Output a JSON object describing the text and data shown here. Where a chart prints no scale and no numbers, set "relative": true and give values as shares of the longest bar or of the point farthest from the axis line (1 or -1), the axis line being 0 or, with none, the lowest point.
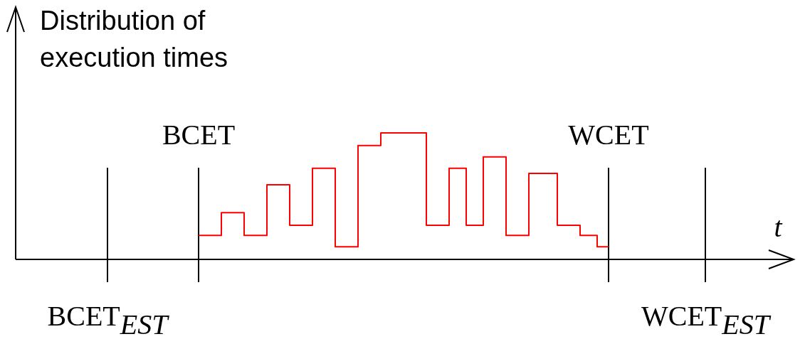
{
  "chart_data": {
    "type": "step",
    "ylabel": "Distribution of execution times",
    "xlabel": "t",
    "relative": true,
    "categories": [
      null,
      null,
      null,
      null,
      null,
      null,
      null,
      null,
      null,
      null,
      null,
      null,
      null,
      null,
      null,
      null,
      null,
      null,
      null,
      null,
      null,
      null,
      null,
      null,
      null,
      null,
      null,
      null,
      null,
      null,
      null,
      null,
      null,
      null,
      null,
      null,
      null,
      null,
      null,
      null,
      null,
      null,
      null,
      null,
      null,
      null,
      null,
      null,
      null,
      null,
      null,
      null,
      null,
      null,
      null,
      null,
      null,
      null,
      null,
      null,
      null,
      null,
      null,
      null,
      null,
      null,
      null,
      null,
      null,
      null,
      null,
      null,
      null,
      null,
      null,
      null,
      null,
      null,
      null,
      null,
      null,
      null,
      null,
      null,
      null,
      null,
      null,
      null,
      null,
      null,
      null,
      null,
      null,
      null,
      null,
      null,
      null,
      null,
      null,
      null,
      null,
      null,
      null,
      null,
      null,
      null
    ],
    "series": [
      {
        "color": "#ff0000",
        "values": [
          null,
          null,
          null,
          null,
          null,
          null,
          null,
          null,
          null,
          null,
          null,
          null,
          null,
          null,
          null,
          null,
          0.19,
          0.19,
          0.19,
          0.19,
          0.37,
          0.37,
          0.37,
          0.37,
          0.19,
          0.19,
          0.19,
          0.19,
          0.59,
          0.59,
          0.59,
          0.59,
          0.27,
          0.27,
          0.27,
          0.27,
          0.72,
          0.72,
          0.72,
          0.72,
          0.1,
          0.1,
          0.1,
          0.1,
          0.9,
          0.9,
          0.9,
          0.9,
          1,
          1,
          1,
          1,
          1,
          1,
          1,
          1,
          0.27,
          0.27,
          0.27,
          0.27,
          0.72,
          0.72,
          0.72,
          0.27,
          0.27,
          0.27,
          0.81,
          0.81,
          0.81,
          0.81,
          0.19,
          0.19,
          0.19,
          0.19,
          0.68,
          0.68,
          0.68,
          0.68,
          0.68,
          0.27,
          0.27,
          0.27,
          0.27,
          0.19,
          0.19,
          0.19,
          0.1,
          0.1,
          0.1,
          null,
          null,
          null,
          null,
          null,
          null,
          null,
          null,
          null,
          null,
          null,
          null,
          null,
          null,
          null,
          null,
          null
        ]
      }
    ],
    "grid": "x",
    "annotations": [
      "BCET$_{EST}$",
      "BCET",
      "WCET",
      "WCET$_{EST}$"
    ]
  }
}
